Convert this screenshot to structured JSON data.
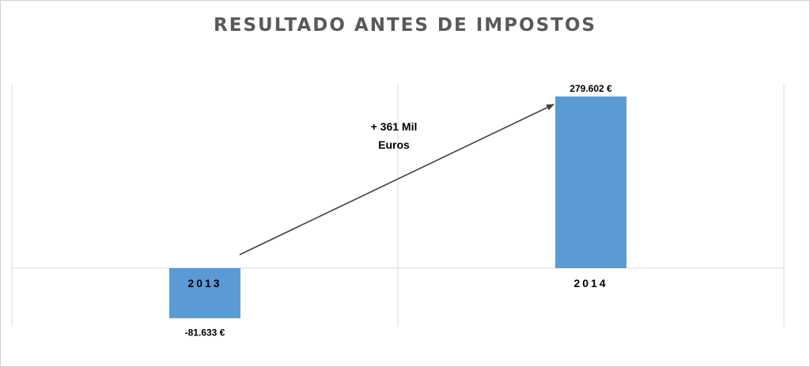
{
  "chart_data": {
    "type": "bar",
    "title": "RESULTADO  ANTES  DE  IMPOSTOS",
    "xlabel": "",
    "ylabel": "",
    "categories": [
      "2013",
      "2014"
    ],
    "values": [
      -81633,
      279602
    ],
    "data_labels": [
      "-81.633 €",
      "279.602 €"
    ],
    "ylim": [
      -125000,
      360000
    ],
    "grid": "vertical",
    "legend": "none",
    "bar_color": "#5b9bd5",
    "annotation": {
      "lines": [
        "+ 361 Mil",
        "Euros"
      ],
      "arrow_from": "2013",
      "arrow_to": "2014"
    }
  }
}
